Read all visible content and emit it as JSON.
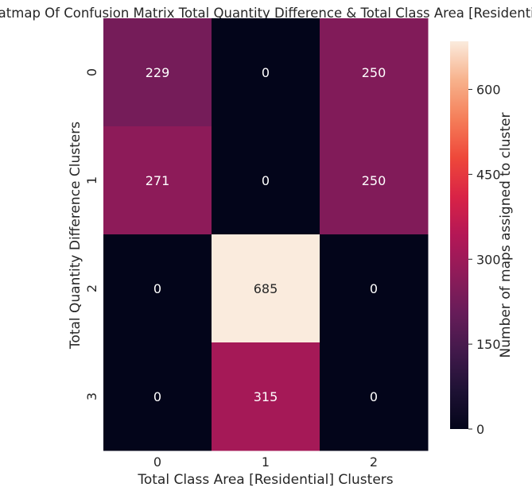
{
  "chart_data": {
    "type": "heatmap",
    "title": "Heatmap Of Confusion Matrix Total Quantity Difference & Total Class Area [Residential]",
    "xlabel": "Total Class Area [Residential] Clusters",
    "ylabel": "Total Quantity Difference Clusters",
    "x_categories": [
      "0",
      "1",
      "2"
    ],
    "y_categories": [
      "0",
      "1",
      "2",
      "3"
    ],
    "values": [
      [
        229,
        0,
        250
      ],
      [
        271,
        0,
        250
      ],
      [
        0,
        685,
        0
      ],
      [
        0,
        315,
        0
      ]
    ],
    "colorbar": {
      "label": "Number of maps assigned to cluster",
      "ticks": [
        "0",
        "150",
        "300",
        "450",
        "600"
      ],
      "range": [
        0,
        685
      ],
      "colormap": "rocket"
    },
    "annotation_color_light": "#ffffff",
    "annotation_color_dark": "#262626"
  }
}
